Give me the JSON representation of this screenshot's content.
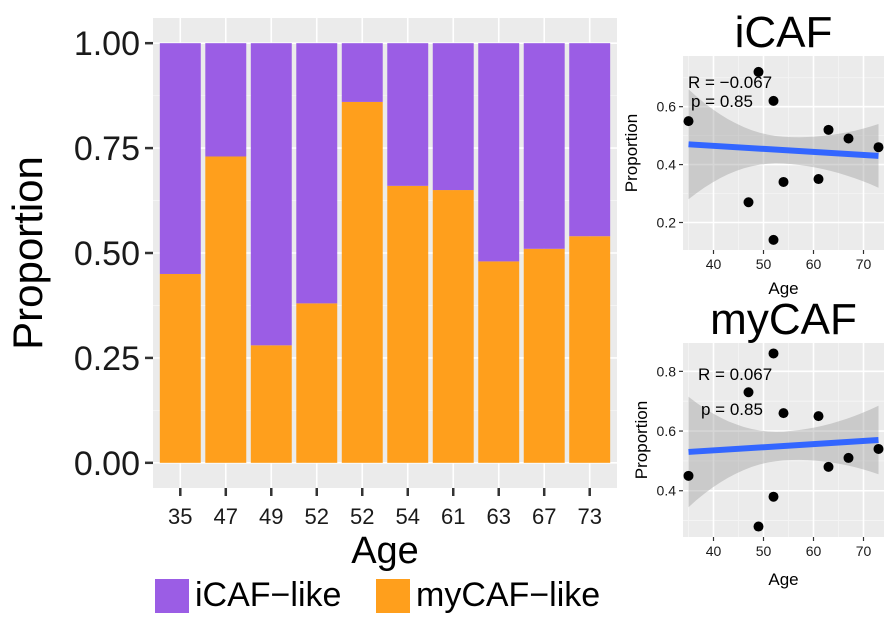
{
  "chart_data": [
    {
      "type": "bar",
      "stacked": true,
      "xlabel": "Age",
      "ylabel": "Proportion",
      "ylim": [
        0,
        1
      ],
      "y_ticks": [
        "0.00",
        "0.25",
        "0.50",
        "0.75",
        "1.00"
      ],
      "categories": [
        "35",
        "47",
        "49",
        "52",
        "52",
        "54",
        "61",
        "63",
        "67",
        "73"
      ],
      "series": [
        {
          "name": "myCAF−like",
          "color": "#ff9f1c",
          "values": [
            0.45,
            0.73,
            0.28,
            0.38,
            0.86,
            0.66,
            0.65,
            0.48,
            0.51,
            0.54
          ]
        },
        {
          "name": "iCAF−like",
          "color": "#9b5de5",
          "values": [
            0.55,
            0.27,
            0.72,
            0.62,
            0.14,
            0.34,
            0.35,
            0.52,
            0.49,
            0.46
          ]
        }
      ],
      "legend_position": "bottom"
    },
    {
      "type": "scatter",
      "title": "iCAF",
      "xlabel": "Age",
      "ylabel": "Proportion",
      "xlim": [
        33.9,
        74.1
      ],
      "ylim": [
        0.105,
        0.775
      ],
      "x_ticks": [
        "40",
        "50",
        "60",
        "70"
      ],
      "y_ticks": [
        "0.2",
        "0.4",
        "0.6"
      ],
      "annotation_r": "R = −0.067",
      "annotation_p": "p = 0.85",
      "points": [
        [
          35,
          0.55
        ],
        [
          47,
          0.27
        ],
        [
          49,
          0.72
        ],
        [
          52,
          0.62
        ],
        [
          52,
          0.14
        ],
        [
          54,
          0.34
        ],
        [
          61,
          0.35
        ],
        [
          63,
          0.52
        ],
        [
          67,
          0.49
        ],
        [
          73,
          0.46
        ]
      ],
      "fit": {
        "x": [
          35,
          73
        ],
        "y": [
          0.47,
          0.43
        ],
        "color": "#3366ff",
        "band_lower": [
          0.28,
          0.32
        ],
        "band_upper": [
          0.66,
          0.54
        ]
      }
    },
    {
      "type": "scatter",
      "title": "myCAF",
      "xlabel": "Age",
      "ylabel": "Proportion",
      "xlim": [
        33.9,
        74.1
      ],
      "ylim": [
        0.245,
        0.895
      ],
      "x_ticks": [
        "40",
        "50",
        "60",
        "70"
      ],
      "y_ticks": [
        "0.4",
        "0.6",
        "0.8"
      ],
      "annotation_r": "R = 0.067",
      "annotation_p": "p = 0.85",
      "points": [
        [
          35,
          0.45
        ],
        [
          47,
          0.73
        ],
        [
          49,
          0.28
        ],
        [
          52,
          0.38
        ],
        [
          52,
          0.86
        ],
        [
          54,
          0.66
        ],
        [
          61,
          0.65
        ],
        [
          63,
          0.48
        ],
        [
          67,
          0.51
        ],
        [
          73,
          0.54
        ]
      ],
      "fit": {
        "x": [
          35,
          73
        ],
        "y": [
          0.53,
          0.57
        ],
        "color": "#3366ff",
        "band_lower": [
          0.35,
          0.45
        ],
        "band_upper": [
          0.72,
          0.68
        ]
      }
    }
  ]
}
